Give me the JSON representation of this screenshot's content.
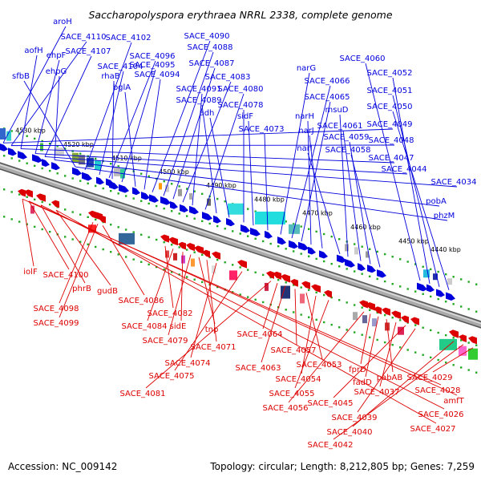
{
  "title": "Saccharopolyspora erythraea NRRL 2338, complete genome",
  "footer": {
    "accession": "Accession: NC_009142",
    "summary": "Topology: circular; Length: 8,212,805 bp; Genes: 7,259"
  },
  "colors": {
    "forward": "#0000dd",
    "reverse": "#dd0000",
    "backbone": "#888888",
    "dots": "#22aa22"
  },
  "ticks": [
    "4530 kbp",
    "4520 kbp",
    "4510 kbp",
    "4500 kbp",
    "4490 kbp",
    "4480 kbp",
    "4470 kbp",
    "4460 kbp",
    "4450 kbp",
    "4440 kbp"
  ],
  "forward_labels": [
    "aroH",
    "SACE_4110",
    "aofH",
    "ehpF",
    "SACE_4107",
    "ehpG",
    "sfbB",
    "SACE_4102",
    "SACE_4104",
    "SACE_4096",
    "rhaB",
    "SACE_4095",
    "bglA",
    "SACE_4094",
    "SACE_4090",
    "SACE_4088",
    "SACE_4087",
    "SACE_4083",
    "SACE_4091",
    "SACE_4080",
    "SACE_4089",
    "adh",
    "SACE_4078",
    "sidF",
    "SACE_4073",
    "narG",
    "SACE_4066",
    "SACE_4065",
    "narH",
    "narJ",
    "narI",
    "msuD",
    "SACE_4061",
    "SACE_4059",
    "SACE_4058",
    "SACE_4060",
    "SACE_4052",
    "SACE_4051",
    "SACE_4050",
    "SACE_4049",
    "SACE_4048",
    "SACE_4047",
    "SACE_4044",
    "SACE_4034",
    "pobA",
    "phzM"
  ],
  "reverse_labels": [
    "iolF",
    "SACE_4100",
    "phrB",
    "gudB",
    "SACE_4098",
    "SACE_4099",
    "SACE_4086",
    "SACE_4082",
    "SACE_4084",
    "sidE",
    "SACE_4079",
    "tnp",
    "SACE_4071",
    "SACE_4074",
    "SACE_4075",
    "SACE_4081",
    "SACE_4064",
    "SACE_4063",
    "SACE_4057",
    "SACE_4053",
    "SACE_4054",
    "SACE_4055",
    "SACE_4056",
    "fprD",
    "fadD",
    "pabAB",
    "SACE_4037",
    "SACE_4045",
    "SACE_4039",
    "SACE_4040",
    "SACE_4042",
    "SACE_4029",
    "SACE_4028",
    "amfT",
    "SACE_4026",
    "SACE_4027"
  ]
}
